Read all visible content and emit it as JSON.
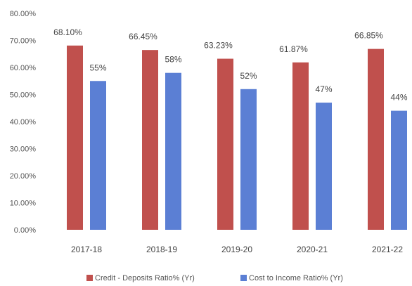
{
  "chart_data": {
    "type": "bar",
    "categories": [
      "2017-18",
      "2018-19",
      "2019-20",
      "2020-21",
      "2021-22"
    ],
    "series": [
      {
        "name": "Credit - Deposits Ratio% (Yr)",
        "color": "#c0504d",
        "values": [
          68.1,
          66.45,
          63.23,
          61.87,
          66.85
        ],
        "labels": [
          "68.10%",
          "66.45%",
          "63.23%",
          "61.87%",
          "66.85%"
        ]
      },
      {
        "name": "Cost to Income Ratio% (Yr)",
        "color": "#5b7fd4",
        "values": [
          55,
          58,
          52,
          47,
          44
        ],
        "labels": [
          "55%",
          "58%",
          "52%",
          "47%",
          "44%"
        ]
      }
    ],
    "yticks": [
      "0.00%",
      "10.00%",
      "20.00%",
      "30.00%",
      "40.00%",
      "50.00%",
      "60.00%",
      "70.00%",
      "80.00%"
    ],
    "ylim": [
      0,
      80
    ],
    "grid": false,
    "legend_position": "bottom"
  }
}
